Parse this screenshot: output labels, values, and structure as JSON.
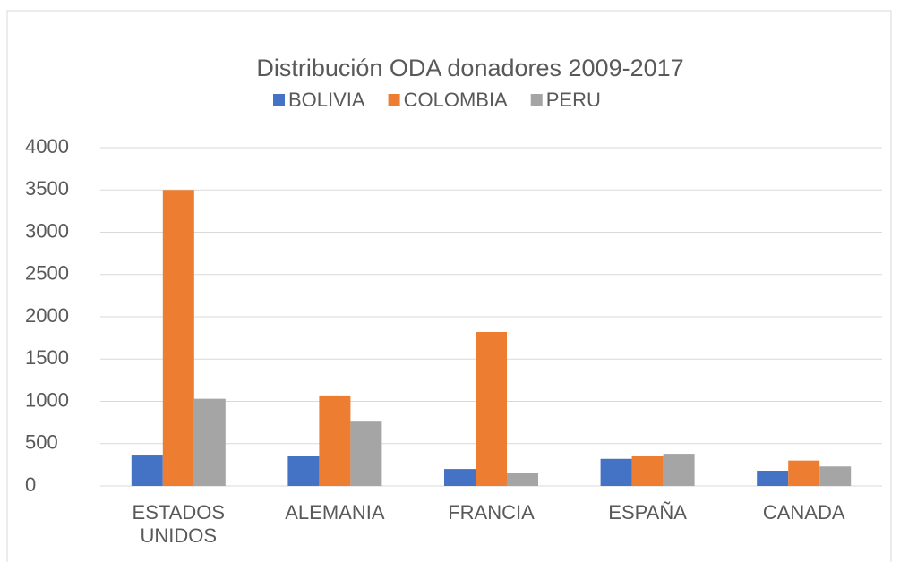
{
  "chart_data": {
    "type": "bar",
    "title": "Distribución ODA donadores 2009-2017",
    "categories": [
      "ESTADOS UNIDOS",
      "ALEMANIA",
      "FRANCIA",
      "ESPAÑA",
      "CANADA"
    ],
    "series": [
      {
        "name": "BOLIVIA",
        "color": "#4472c4",
        "values": [
          370,
          350,
          200,
          320,
          180
        ]
      },
      {
        "name": "COLOMBIA",
        "color": "#ed7d31",
        "values": [
          3500,
          1070,
          1820,
          350,
          300
        ]
      },
      {
        "name": "PERU",
        "color": "#a5a5a5",
        "values": [
          1030,
          760,
          150,
          380,
          230
        ]
      }
    ],
    "ylim": [
      0,
      4000
    ],
    "yticks": [
      0,
      500,
      1000,
      1500,
      2000,
      2500,
      3000,
      3500,
      4000
    ],
    "grid": true
  }
}
